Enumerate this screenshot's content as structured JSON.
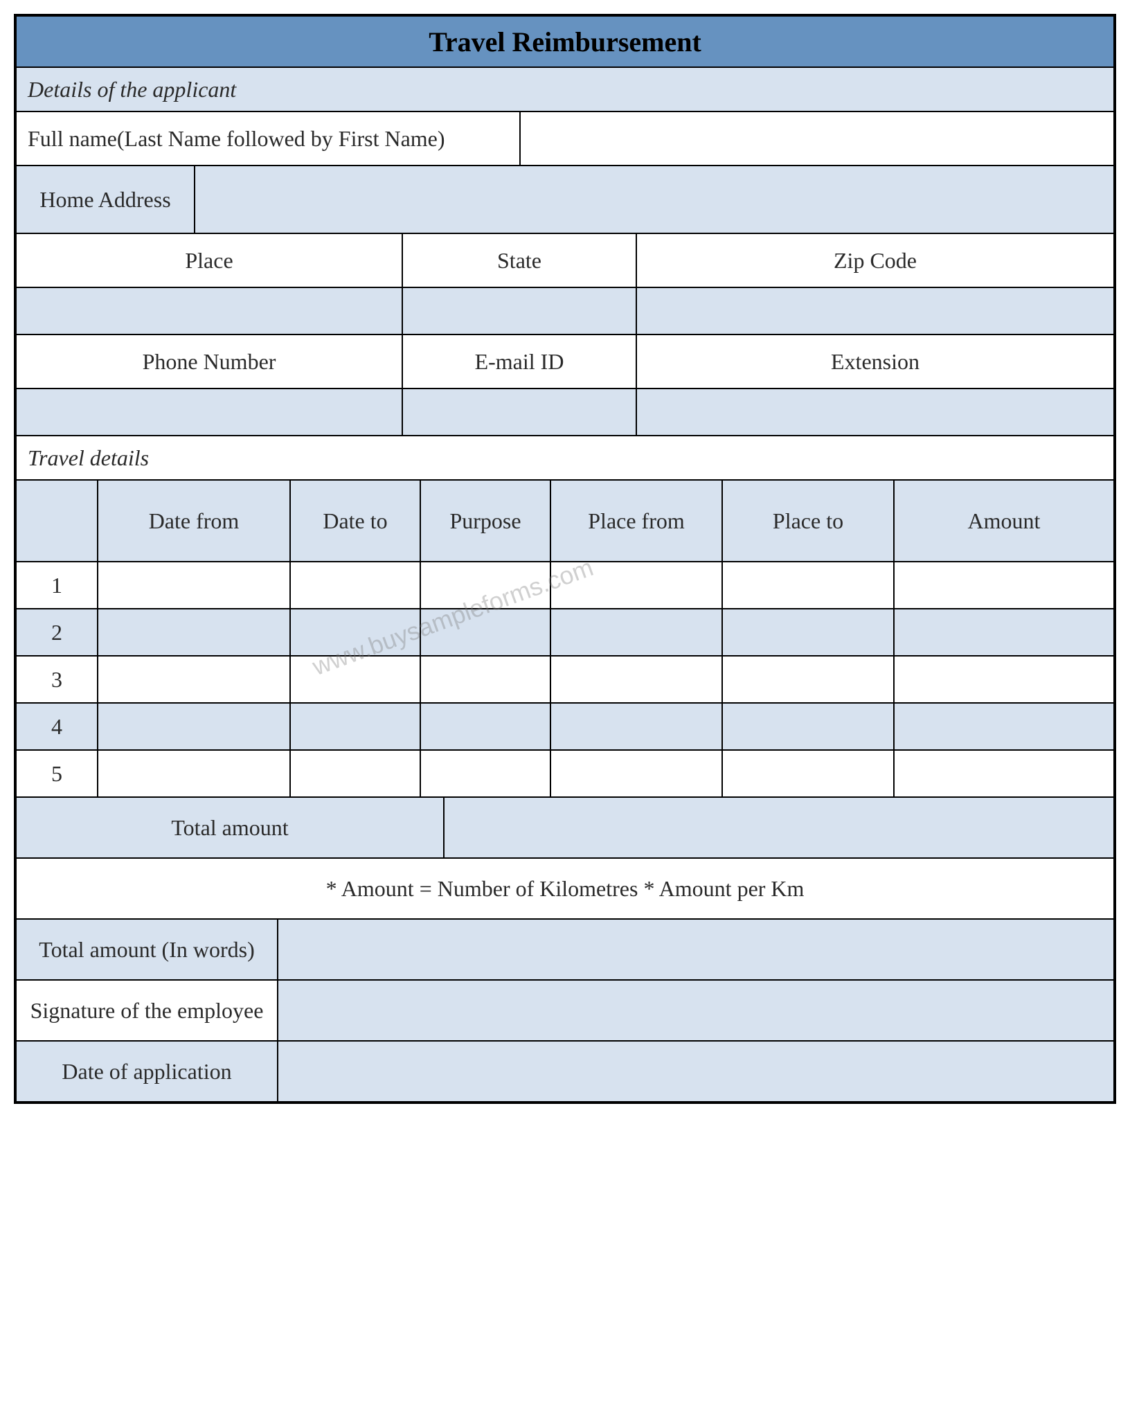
{
  "colors": {
    "header_bg": "#6692c0",
    "shade_bg": "#d7e2ef",
    "white_bg": "#ffffff",
    "border": "#000000",
    "text": "#2a2a2a"
  },
  "title": "Travel Reimbursement",
  "section1": {
    "header": "Details of the applicant",
    "full_name_label": "Full name(Last Name followed by First Name)",
    "full_name_value": "",
    "home_address_label": "Home Address",
    "home_address_value": "",
    "place_label": "Place",
    "state_label": "State",
    "zip_label": "Zip Code",
    "place_value": "",
    "state_value": "",
    "zip_value": "",
    "phone_label": "Phone Number",
    "email_label": "E-mail ID",
    "ext_label": "Extension",
    "phone_value": "",
    "email_value": "",
    "ext_value": ""
  },
  "section2": {
    "header": "Travel details",
    "columns": {
      "num": "",
      "date_from": "Date from",
      "date_to": "Date to",
      "purpose": "Purpose",
      "place_from": "Place from",
      "place_to": "Place to",
      "amount": "Amount"
    },
    "rows": [
      {
        "num": "1",
        "date_from": "",
        "date_to": "",
        "purpose": "",
        "place_from": "",
        "place_to": "",
        "amount": ""
      },
      {
        "num": "2",
        "date_from": "",
        "date_to": "",
        "purpose": "",
        "place_from": "",
        "place_to": "",
        "amount": ""
      },
      {
        "num": "3",
        "date_from": "",
        "date_to": "",
        "purpose": "",
        "place_from": "",
        "place_to": "",
        "amount": ""
      },
      {
        "num": "4",
        "date_from": "",
        "date_to": "",
        "purpose": "",
        "place_from": "",
        "place_to": "",
        "amount": ""
      },
      {
        "num": "5",
        "date_from": "",
        "date_to": "",
        "purpose": "",
        "place_from": "",
        "place_to": "",
        "amount": ""
      }
    ],
    "row_shades": [
      "white",
      "shade",
      "white",
      "shade",
      "white"
    ],
    "total_label": "Total amount",
    "total_value": "",
    "note": "* Amount = Number of Kilometres * Amount per Km",
    "total_words_label": "Total amount (In words)",
    "total_words_value": "",
    "signature_label": "Signature of the employee",
    "signature_value": "",
    "date_app_label": "Date of application",
    "date_app_value": ""
  },
  "watermark": "www.buysampleforms.com",
  "layout": {
    "travel_col_widths": [
      100,
      300,
      200,
      200,
      250,
      250,
      200
    ],
    "address_cols": [
      430,
      250,
      430
    ],
    "footer_label_width": 380
  }
}
